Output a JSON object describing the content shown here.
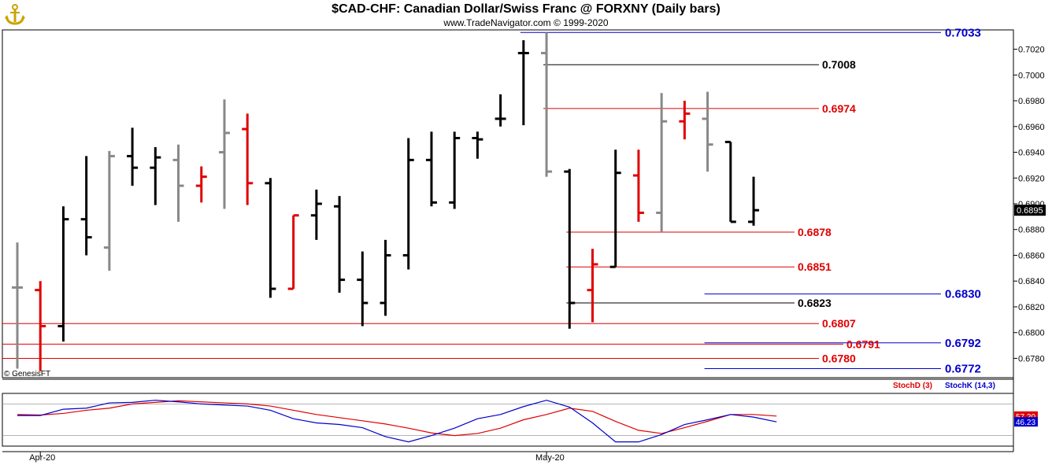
{
  "header": {
    "title": "$CAD-CHF:  Canadian Dollar/Swiss Franc @ FORXNY  (Daily bars)",
    "subtitle": "www.TradeNavigator.com © 1999-2020",
    "logo_icon": "anchor-gold-icon"
  },
  "copyright": "© GenesisFT",
  "colors": {
    "bar_black": "#000000",
    "bar_gray": "#888888",
    "bar_red": "#e00000",
    "level_red": "#e00000",
    "level_blue": "#0000cc",
    "level_black": "#000000",
    "stoch_d": "#e00000",
    "stoch_k": "#0000cc"
  },
  "chart_data": [
    {
      "type": "ohlc",
      "name": "price",
      "ylim": [
        0.6765,
        0.7035
      ],
      "y_ticks": [
        0.678,
        0.68,
        0.682,
        0.684,
        0.686,
        0.688,
        0.69,
        0.692,
        0.694,
        0.696,
        0.698,
        0.7,
        0.702
      ],
      "y_tick_labels": [
        "0.6780",
        "0.6800",
        "0.6820",
        "0.6840",
        "0.6860",
        "0.6880",
        "0.6900",
        "0.6920",
        "0.6940",
        "0.6960",
        "0.6980",
        "0.7000",
        "0.7020"
      ],
      "last_price": "0.6895",
      "x_labels": [
        {
          "label": "Apr-20",
          "index": 1
        },
        {
          "label": "May-20",
          "index": 23
        }
      ],
      "bars": [
        {
          "o": 0.6835,
          "h": 0.687,
          "l": 0.6772,
          "c": 0.6835,
          "color": "gray"
        },
        {
          "o": 0.6833,
          "h": 0.684,
          "l": 0.677,
          "c": 0.6805,
          "color": "red"
        },
        {
          "o": 0.6805,
          "h": 0.6898,
          "l": 0.6793,
          "c": 0.6888,
          "color": "black"
        },
        {
          "o": 0.6888,
          "h": 0.6937,
          "l": 0.686,
          "c": 0.6874,
          "color": "black"
        },
        {
          "o": 0.6866,
          "h": 0.6941,
          "l": 0.6848,
          "c": 0.6937,
          "color": "gray"
        },
        {
          "o": 0.6937,
          "h": 0.6959,
          "l": 0.6914,
          "c": 0.6928,
          "color": "black"
        },
        {
          "o": 0.6928,
          "h": 0.6944,
          "l": 0.6899,
          "c": 0.6936,
          "color": "black"
        },
        {
          "o": 0.6934,
          "h": 0.6946,
          "l": 0.6886,
          "c": 0.6914,
          "color": "gray"
        },
        {
          "o": 0.6914,
          "h": 0.6929,
          "l": 0.6901,
          "c": 0.6921,
          "color": "red"
        },
        {
          "o": 0.694,
          "h": 0.6981,
          "l": 0.6896,
          "c": 0.6955,
          "color": "gray"
        },
        {
          "o": 0.6958,
          "h": 0.697,
          "l": 0.6899,
          "c": 0.6916,
          "color": "red"
        },
        {
          "o": 0.6916,
          "h": 0.692,
          "l": 0.6827,
          "c": 0.6834,
          "color": "black"
        },
        {
          "o": 0.6834,
          "h": 0.6891,
          "l": 0.6834,
          "c": 0.6891,
          "color": "red"
        },
        {
          "o": 0.6891,
          "h": 0.6911,
          "l": 0.6872,
          "c": 0.69,
          "color": "black"
        },
        {
          "o": 0.6898,
          "h": 0.6906,
          "l": 0.6831,
          "c": 0.6841,
          "color": "black"
        },
        {
          "o": 0.6841,
          "h": 0.6863,
          "l": 0.6805,
          "c": 0.6823,
          "color": "black"
        },
        {
          "o": 0.6823,
          "h": 0.6872,
          "l": 0.6813,
          "c": 0.686,
          "color": "black"
        },
        {
          "o": 0.686,
          "h": 0.6951,
          "l": 0.6849,
          "c": 0.6934,
          "color": "black"
        },
        {
          "o": 0.6934,
          "h": 0.6956,
          "l": 0.6898,
          "c": 0.6901,
          "color": "black"
        },
        {
          "o": 0.6901,
          "h": 0.6956,
          "l": 0.6896,
          "c": 0.6951,
          "color": "black"
        },
        {
          "o": 0.6951,
          "h": 0.6956,
          "l": 0.6935,
          "c": 0.695,
          "color": "black"
        },
        {
          "o": 0.6966,
          "h": 0.6985,
          "l": 0.696,
          "c": 0.6966,
          "color": "black"
        },
        {
          "o": 0.7017,
          "h": 0.7027,
          "l": 0.6961,
          "c": 0.7017,
          "color": "black"
        },
        {
          "o": 0.7017,
          "h": 0.7033,
          "l": 0.6921,
          "c": 0.6925,
          "color": "gray"
        },
        {
          "o": 0.6925,
          "h": 0.6927,
          "l": 0.6803,
          "c": 0.6823,
          "color": "black"
        },
        {
          "o": 0.6833,
          "h": 0.6865,
          "l": 0.6808,
          "c": 0.6853,
          "color": "red"
        },
        {
          "o": 0.6851,
          "h": 0.6942,
          "l": 0.6851,
          "c": 0.6924,
          "color": "black"
        },
        {
          "o": 0.6922,
          "h": 0.6942,
          "l": 0.6886,
          "c": 0.6893,
          "color": "red"
        },
        {
          "o": 0.6893,
          "h": 0.6986,
          "l": 0.6878,
          "c": 0.6964,
          "color": "gray"
        },
        {
          "o": 0.6964,
          "h": 0.698,
          "l": 0.695,
          "c": 0.697,
          "color": "red"
        },
        {
          "o": 0.6966,
          "h": 0.6987,
          "l": 0.6925,
          "c": 0.6946,
          "color": "gray"
        },
        {
          "o": 0.6948,
          "h": 0.6948,
          "l": 0.6886,
          "c": 0.6886,
          "color": "black"
        },
        {
          "o": 0.6886,
          "h": 0.6921,
          "l": 0.6883,
          "c": 0.6895,
          "color": "black"
        }
      ],
      "levels": [
        {
          "value": 0.7033,
          "label": "0.7033",
          "color": "blue",
          "from_index": 22,
          "bold": true,
          "label_side": "axis"
        },
        {
          "value": 0.7008,
          "label": "0.7008",
          "color": "black",
          "from_index": 23,
          "label_side": "mid"
        },
        {
          "value": 0.6974,
          "label": "0.6974",
          "color": "red",
          "from_index": 23,
          "label_side": "mid"
        },
        {
          "value": 0.6878,
          "label": "0.6878",
          "color": "red",
          "from_index": 24,
          "label_side": "near"
        },
        {
          "value": 0.6851,
          "label": "0.6851",
          "color": "red",
          "from_index": 24,
          "label_side": "near"
        },
        {
          "value": 0.683,
          "label": "0.6830",
          "color": "blue",
          "from_index": 30,
          "bold": true,
          "label_side": "axis"
        },
        {
          "value": 0.6823,
          "label": "0.6823",
          "color": "black",
          "from_index": 24,
          "label_side": "near"
        },
        {
          "value": 0.6807,
          "label": "0.6807",
          "color": "red",
          "from_index": -1,
          "label_side": "mid"
        },
        {
          "value": 0.6792,
          "label": "0.6792",
          "color": "blue",
          "from_index": 30,
          "bold": true,
          "label_side": "axis"
        },
        {
          "value": 0.6791,
          "label": "0.6791",
          "color": "red",
          "from_index": -1,
          "label_side": "far"
        },
        {
          "value": 0.678,
          "label": "0.6780",
          "color": "red",
          "from_index": -1,
          "label_side": "mid"
        },
        {
          "value": 0.6772,
          "label": "0.6772",
          "color": "blue",
          "from_index": 30,
          "bold": true,
          "label_side": "axis"
        }
      ]
    },
    {
      "type": "line",
      "name": "stochastic",
      "ylim": [
        0,
        100
      ],
      "legend": [
        "StochD (3)",
        "StochK (14,3)"
      ],
      "series": [
        {
          "name": "StochD (3)",
          "color": "red",
          "last_label": "57.20",
          "values": [
            60,
            59,
            62,
            68,
            72,
            80,
            83,
            86,
            84,
            82,
            80,
            76,
            68,
            60,
            54,
            48,
            42,
            34,
            25,
            20,
            24,
            34,
            50,
            60,
            72,
            66,
            47,
            30,
            24,
            35,
            47,
            60,
            60,
            57
          ]
        },
        {
          "name": "StochK (14,3)",
          "color": "blue",
          "last_label": "46.23",
          "values": [
            58,
            58,
            70,
            72,
            82,
            83,
            87,
            84,
            80,
            78,
            76,
            68,
            52,
            44,
            41,
            35,
            18,
            8,
            20,
            34,
            52,
            60,
            75,
            87,
            74,
            44,
            8,
            8,
            22,
            41,
            50,
            60,
            55,
            46
          ]
        }
      ]
    }
  ]
}
